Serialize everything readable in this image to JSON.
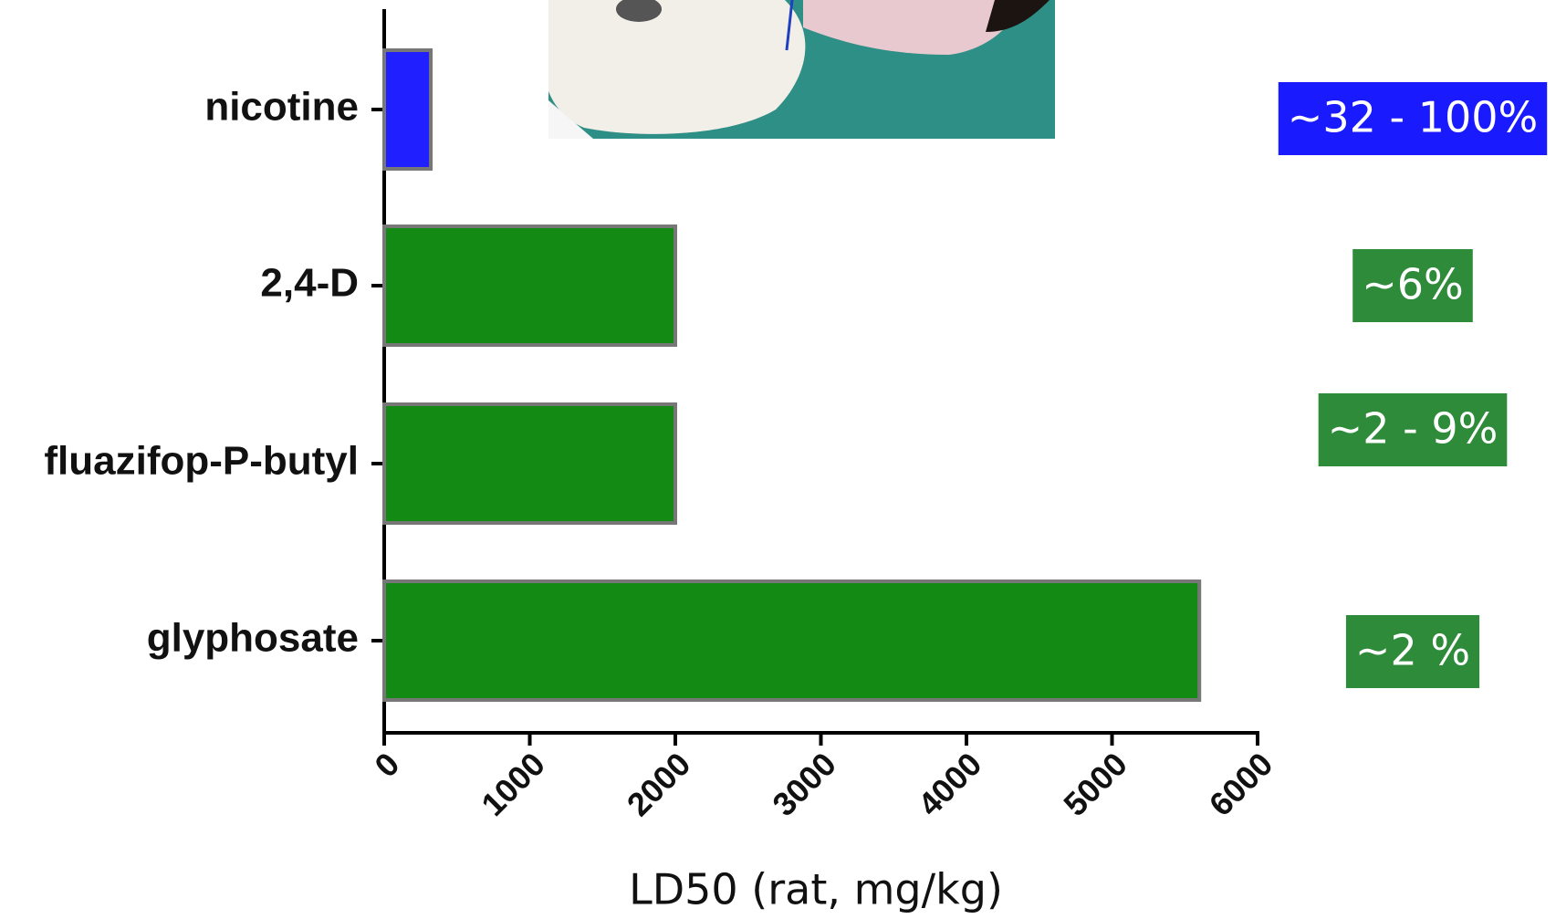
{
  "chart_data": {
    "type": "bar",
    "orientation": "horizontal",
    "categories": [
      "nicotine",
      "2,4-D",
      "fluazifop-P-butyl",
      "glyphosate"
    ],
    "values": [
      320,
      2000,
      2000,
      5600
    ],
    "colors": [
      "#1f1fff",
      "#138a13",
      "#138a13",
      "#138a13"
    ],
    "xlim": [
      0,
      6000
    ],
    "xticks": [
      0,
      1000,
      2000,
      3000,
      4000,
      5000,
      6000
    ],
    "xlabel": "LD50 (rat, mg/kg)",
    "annotations": [
      {
        "text": "~32 - 100%",
        "color": "#1a1aff"
      },
      {
        "text": "~6%",
        "color": "#2e8b3a"
      },
      {
        "text": "~2 - 9%",
        "color": "#2e8b3a"
      },
      {
        "text": "~2 %",
        "color": "#2e8b3a"
      }
    ]
  }
}
